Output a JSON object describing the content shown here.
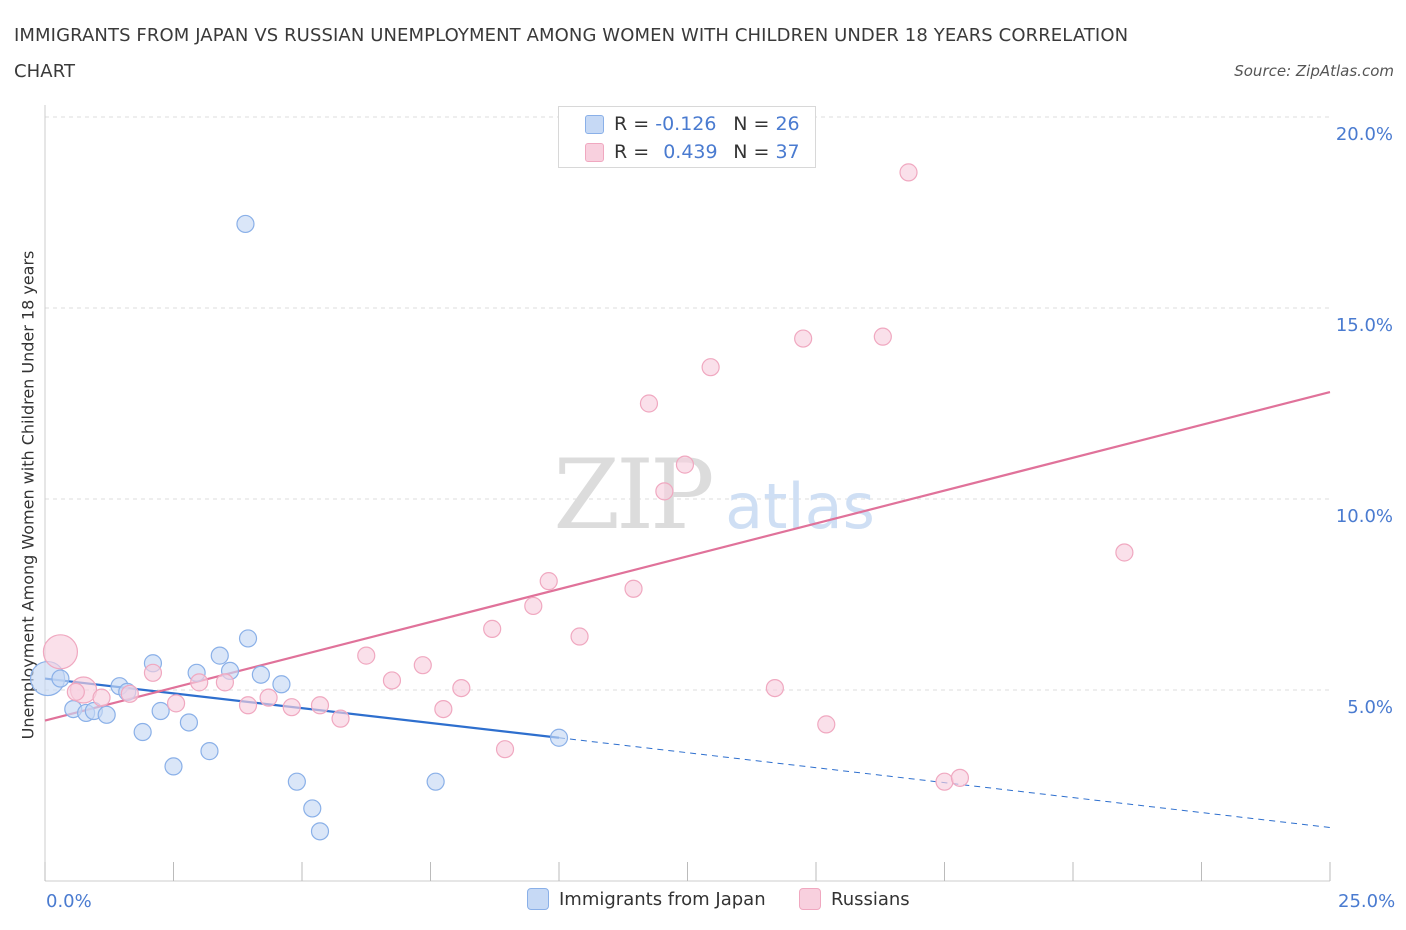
{
  "chart_data": {
    "type": "scatter",
    "title": "IMMIGRANTS FROM JAPAN VS RUSSIAN UNEMPLOYMENT AMONG WOMEN WITH CHILDREN UNDER 18 YEARS CORRELATION CHART",
    "source": "Source: ZipAtlas.com",
    "ylabel": "Unemployment Among Women with Children Under 18 years",
    "xlim": [
      0,
      25
    ],
    "ylim": [
      0,
      20
    ],
    "y_ticks": [
      {
        "value": 5,
        "label": "5.0%"
      },
      {
        "value": 10,
        "label": "10.0%"
      },
      {
        "value": 15,
        "label": "15.0%"
      },
      {
        "value": 20,
        "label": "20.0%"
      }
    ],
    "x_tick_labels": {
      "min": "0.0%",
      "max": "25.0%"
    },
    "grid": true,
    "watermark": {
      "zip": "ZIP",
      "atlas": "atlas"
    },
    "series": [
      {
        "name": "Immigrants from Japan",
        "color": "#8ab0e8",
        "fill": "#c6d9f5",
        "line_color": "#2e6fce",
        "stats": {
          "r_label": "R =",
          "r": "-0.126",
          "n_label": "N =",
          "n": "26"
        },
        "trend": {
          "x0": 0,
          "y0": 5.3,
          "x1": 10,
          "y1": 3.75,
          "dash_to_x": 25,
          "dash_to_y": 1.4
        },
        "points": [
          {
            "x": 0.05,
            "y": 5.3,
            "size": 3
          },
          {
            "x": 0.3,
            "y": 5.3,
            "size": 1
          },
          {
            "x": 0.55,
            "y": 4.5,
            "size": 1
          },
          {
            "x": 0.8,
            "y": 4.4,
            "size": 1
          },
          {
            "x": 0.95,
            "y": 4.45,
            "size": 1
          },
          {
            "x": 1.2,
            "y": 4.35,
            "size": 1
          },
          {
            "x": 1.45,
            "y": 5.1,
            "size": 1
          },
          {
            "x": 1.6,
            "y": 4.95,
            "size": 1
          },
          {
            "x": 1.9,
            "y": 3.9,
            "size": 1
          },
          {
            "x": 2.1,
            "y": 5.7,
            "size": 1
          },
          {
            "x": 2.25,
            "y": 4.45,
            "size": 1
          },
          {
            "x": 2.5,
            "y": 3.0,
            "size": 1
          },
          {
            "x": 2.8,
            "y": 4.15,
            "size": 1
          },
          {
            "x": 2.95,
            "y": 5.45,
            "size": 1
          },
          {
            "x": 3.2,
            "y": 3.4,
            "size": 1
          },
          {
            "x": 3.4,
            "y": 5.9,
            "size": 1
          },
          {
            "x": 3.6,
            "y": 5.5,
            "size": 1
          },
          {
            "x": 3.9,
            "y": 17.2,
            "size": 1
          },
          {
            "x": 3.95,
            "y": 6.35,
            "size": 1
          },
          {
            "x": 4.2,
            "y": 5.4,
            "size": 1
          },
          {
            "x": 4.6,
            "y": 5.15,
            "size": 1
          },
          {
            "x": 4.9,
            "y": 2.6,
            "size": 1
          },
          {
            "x": 5.2,
            "y": 1.9,
            "size": 1
          },
          {
            "x": 5.35,
            "y": 1.3,
            "size": 1
          },
          {
            "x": 7.6,
            "y": 2.6,
            "size": 1
          },
          {
            "x": 10.0,
            "y": 3.75,
            "size": 1
          }
        ]
      },
      {
        "name": "Russians",
        "color": "#f0a8c0",
        "fill": "#f8d0de",
        "line_color": "#e0729a",
        "stats": {
          "r_label": "R =",
          "r": "0.439",
          "n_label": "N =",
          "n": "37"
        },
        "trend": {
          "x0": 0,
          "y0": 4.2,
          "x1": 25,
          "y1": 12.8
        },
        "points": [
          {
            "x": 0.3,
            "y": 6.0,
            "size": 3
          },
          {
            "x": 0.75,
            "y": 5.0,
            "size": 2
          },
          {
            "x": 1.1,
            "y": 4.8,
            "size": 1
          },
          {
            "x": 1.65,
            "y": 4.9,
            "size": 1
          },
          {
            "x": 2.1,
            "y": 5.45,
            "size": 1
          },
          {
            "x": 2.55,
            "y": 4.65,
            "size": 1
          },
          {
            "x": 3.0,
            "y": 5.2,
            "size": 1
          },
          {
            "x": 3.5,
            "y": 5.2,
            "size": 1
          },
          {
            "x": 3.95,
            "y": 4.6,
            "size": 1
          },
          {
            "x": 4.35,
            "y": 4.8,
            "size": 1
          },
          {
            "x": 4.8,
            "y": 4.55,
            "size": 1
          },
          {
            "x": 5.35,
            "y": 4.6,
            "size": 1
          },
          {
            "x": 5.75,
            "y": 4.25,
            "size": 1
          },
          {
            "x": 6.25,
            "y": 5.9,
            "size": 1
          },
          {
            "x": 6.75,
            "y": 5.25,
            "size": 1
          },
          {
            "x": 7.35,
            "y": 5.65,
            "size": 1
          },
          {
            "x": 7.75,
            "y": 4.5,
            "size": 1
          },
          {
            "x": 8.1,
            "y": 5.05,
            "size": 1
          },
          {
            "x": 8.7,
            "y": 6.6,
            "size": 1
          },
          {
            "x": 8.95,
            "y": 3.45,
            "size": 1
          },
          {
            "x": 9.5,
            "y": 7.2,
            "size": 1
          },
          {
            "x": 9.8,
            "y": 7.85,
            "size": 1
          },
          {
            "x": 10.4,
            "y": 6.4,
            "size": 1
          },
          {
            "x": 11.45,
            "y": 7.65,
            "size": 1
          },
          {
            "x": 11.75,
            "y": 12.5,
            "size": 1
          },
          {
            "x": 12.05,
            "y": 10.2,
            "size": 1
          },
          {
            "x": 12.45,
            "y": 10.9,
            "size": 1
          },
          {
            "x": 12.95,
            "y": 13.45,
            "size": 1
          },
          {
            "x": 14.2,
            "y": 5.05,
            "size": 1
          },
          {
            "x": 14.75,
            "y": 14.2,
            "size": 1
          },
          {
            "x": 15.2,
            "y": 4.1,
            "size": 1
          },
          {
            "x": 16.3,
            "y": 14.25,
            "size": 1
          },
          {
            "x": 16.8,
            "y": 18.55,
            "size": 1
          },
          {
            "x": 17.5,
            "y": 2.6,
            "size": 1
          },
          {
            "x": 17.8,
            "y": 2.7,
            "size": 1
          },
          {
            "x": 21.0,
            "y": 8.6,
            "size": 1
          },
          {
            "x": 0.6,
            "y": 4.95,
            "size": 1
          }
        ]
      }
    ]
  }
}
